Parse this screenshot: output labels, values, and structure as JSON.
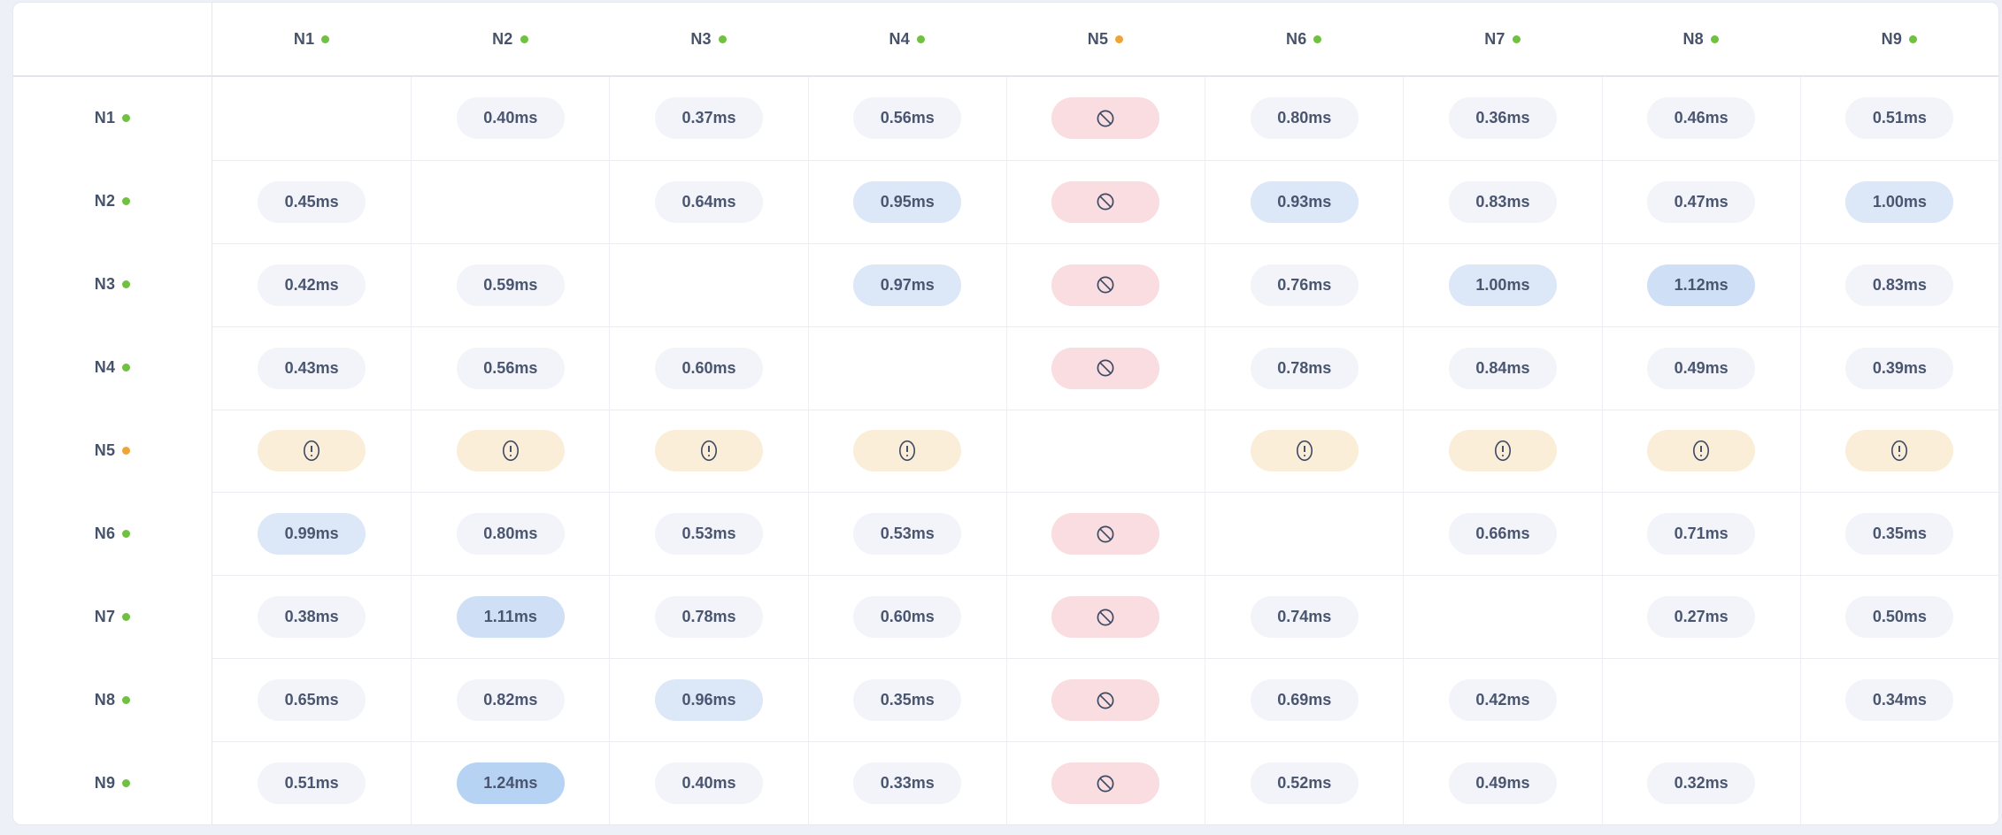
{
  "table": {
    "unit": "ms",
    "columns": [
      {
        "id": "N1",
        "label": "N1",
        "status": "online"
      },
      {
        "id": "N2",
        "label": "N2",
        "status": "online"
      },
      {
        "id": "N3",
        "label": "N3",
        "status": "online"
      },
      {
        "id": "N4",
        "label": "N4",
        "status": "online"
      },
      {
        "id": "N5",
        "label": "N5",
        "status": "warning"
      },
      {
        "id": "N6",
        "label": "N6",
        "status": "online"
      },
      {
        "id": "N7",
        "label": "N7",
        "status": "online"
      },
      {
        "id": "N8",
        "label": "N8",
        "status": "online"
      },
      {
        "id": "N9",
        "label": "N9",
        "status": "online"
      }
    ],
    "rows": [
      {
        "id": "N1",
        "label": "N1",
        "status": "online",
        "cells": [
          {
            "type": "self"
          },
          {
            "type": "value",
            "value": "0.40ms",
            "variant": "normal"
          },
          {
            "type": "value",
            "value": "0.37ms",
            "variant": "normal"
          },
          {
            "type": "value",
            "value": "0.56ms",
            "variant": "normal"
          },
          {
            "type": "blocked"
          },
          {
            "type": "value",
            "value": "0.80ms",
            "variant": "normal"
          },
          {
            "type": "value",
            "value": "0.36ms",
            "variant": "normal"
          },
          {
            "type": "value",
            "value": "0.46ms",
            "variant": "normal"
          },
          {
            "type": "value",
            "value": "0.51ms",
            "variant": "normal"
          }
        ]
      },
      {
        "id": "N2",
        "label": "N2",
        "status": "online",
        "cells": [
          {
            "type": "value",
            "value": "0.45ms",
            "variant": "normal"
          },
          {
            "type": "self"
          },
          {
            "type": "value",
            "value": "0.64ms",
            "variant": "normal"
          },
          {
            "type": "value",
            "value": "0.95ms",
            "variant": "high"
          },
          {
            "type": "blocked"
          },
          {
            "type": "value",
            "value": "0.93ms",
            "variant": "high"
          },
          {
            "type": "value",
            "value": "0.83ms",
            "variant": "normal"
          },
          {
            "type": "value",
            "value": "0.47ms",
            "variant": "normal"
          },
          {
            "type": "value",
            "value": "1.00ms",
            "variant": "high"
          }
        ]
      },
      {
        "id": "N3",
        "label": "N3",
        "status": "online",
        "cells": [
          {
            "type": "value",
            "value": "0.42ms",
            "variant": "normal"
          },
          {
            "type": "value",
            "value": "0.59ms",
            "variant": "normal"
          },
          {
            "type": "self"
          },
          {
            "type": "value",
            "value": "0.97ms",
            "variant": "high"
          },
          {
            "type": "blocked"
          },
          {
            "type": "value",
            "value": "0.76ms",
            "variant": "normal"
          },
          {
            "type": "value",
            "value": "1.00ms",
            "variant": "high"
          },
          {
            "type": "value",
            "value": "1.12ms",
            "variant": "higher"
          },
          {
            "type": "value",
            "value": "0.83ms",
            "variant": "normal"
          }
        ]
      },
      {
        "id": "N4",
        "label": "N4",
        "status": "online",
        "cells": [
          {
            "type": "value",
            "value": "0.43ms",
            "variant": "normal"
          },
          {
            "type": "value",
            "value": "0.56ms",
            "variant": "normal"
          },
          {
            "type": "value",
            "value": "0.60ms",
            "variant": "normal"
          },
          {
            "type": "self"
          },
          {
            "type": "blocked"
          },
          {
            "type": "value",
            "value": "0.78ms",
            "variant": "normal"
          },
          {
            "type": "value",
            "value": "0.84ms",
            "variant": "normal"
          },
          {
            "type": "value",
            "value": "0.49ms",
            "variant": "normal"
          },
          {
            "type": "value",
            "value": "0.39ms",
            "variant": "normal"
          }
        ]
      },
      {
        "id": "N5",
        "label": "N5",
        "status": "warning",
        "cells": [
          {
            "type": "warning"
          },
          {
            "type": "warning"
          },
          {
            "type": "warning"
          },
          {
            "type": "warning"
          },
          {
            "type": "self"
          },
          {
            "type": "warning"
          },
          {
            "type": "warning"
          },
          {
            "type": "warning"
          },
          {
            "type": "warning"
          }
        ]
      },
      {
        "id": "N6",
        "label": "N6",
        "status": "online",
        "cells": [
          {
            "type": "value",
            "value": "0.99ms",
            "variant": "high"
          },
          {
            "type": "value",
            "value": "0.80ms",
            "variant": "normal"
          },
          {
            "type": "value",
            "value": "0.53ms",
            "variant": "normal"
          },
          {
            "type": "value",
            "value": "0.53ms",
            "variant": "normal"
          },
          {
            "type": "blocked"
          },
          {
            "type": "self"
          },
          {
            "type": "value",
            "value": "0.66ms",
            "variant": "normal"
          },
          {
            "type": "value",
            "value": "0.71ms",
            "variant": "normal"
          },
          {
            "type": "value",
            "value": "0.35ms",
            "variant": "normal"
          }
        ]
      },
      {
        "id": "N7",
        "label": "N7",
        "status": "online",
        "cells": [
          {
            "type": "value",
            "value": "0.38ms",
            "variant": "normal"
          },
          {
            "type": "value",
            "value": "1.11ms",
            "variant": "higher"
          },
          {
            "type": "value",
            "value": "0.78ms",
            "variant": "normal"
          },
          {
            "type": "value",
            "value": "0.60ms",
            "variant": "normal"
          },
          {
            "type": "blocked"
          },
          {
            "type": "value",
            "value": "0.74ms",
            "variant": "normal"
          },
          {
            "type": "self"
          },
          {
            "type": "value",
            "value": "0.27ms",
            "variant": "normal"
          },
          {
            "type": "value",
            "value": "0.50ms",
            "variant": "normal"
          }
        ]
      },
      {
        "id": "N8",
        "label": "N8",
        "status": "online",
        "cells": [
          {
            "type": "value",
            "value": "0.65ms",
            "variant": "normal"
          },
          {
            "type": "value",
            "value": "0.82ms",
            "variant": "normal"
          },
          {
            "type": "value",
            "value": "0.96ms",
            "variant": "high"
          },
          {
            "type": "value",
            "value": "0.35ms",
            "variant": "normal"
          },
          {
            "type": "blocked"
          },
          {
            "type": "value",
            "value": "0.69ms",
            "variant": "normal"
          },
          {
            "type": "value",
            "value": "0.42ms",
            "variant": "normal"
          },
          {
            "type": "self"
          },
          {
            "type": "value",
            "value": "0.34ms",
            "variant": "normal"
          }
        ]
      },
      {
        "id": "N9",
        "label": "N9",
        "status": "online",
        "cells": [
          {
            "type": "value",
            "value": "0.51ms",
            "variant": "normal"
          },
          {
            "type": "value",
            "value": "1.24ms",
            "variant": "highest"
          },
          {
            "type": "value",
            "value": "0.40ms",
            "variant": "normal"
          },
          {
            "type": "value",
            "value": "0.33ms",
            "variant": "normal"
          },
          {
            "type": "blocked"
          },
          {
            "type": "value",
            "value": "0.52ms",
            "variant": "normal"
          },
          {
            "type": "value",
            "value": "0.49ms",
            "variant": "normal"
          },
          {
            "type": "value",
            "value": "0.32ms",
            "variant": "normal"
          },
          {
            "type": "self"
          }
        ]
      }
    ]
  },
  "icons": {
    "blocked": "no-entry-icon",
    "warning": "alert-icon",
    "status": "status-dot"
  },
  "palette": {
    "page_bg": "#edf0f6",
    "card_bg": "#ffffff",
    "text": "#4a5570",
    "header_text": "#47526b",
    "status_online": "#6fc13f",
    "status_warning": "#f0a437",
    "pill_normal_bg": "#f2f4f9",
    "pill_high_bg": "#dce8f8",
    "pill_higher_bg": "#cfe0f6",
    "pill_highest_bg": "#b7d3f4",
    "pill_blocked_bg": "#f9dde0",
    "pill_warning_bg": "#fbeed8",
    "icon_stroke": "#3e4a63"
  }
}
